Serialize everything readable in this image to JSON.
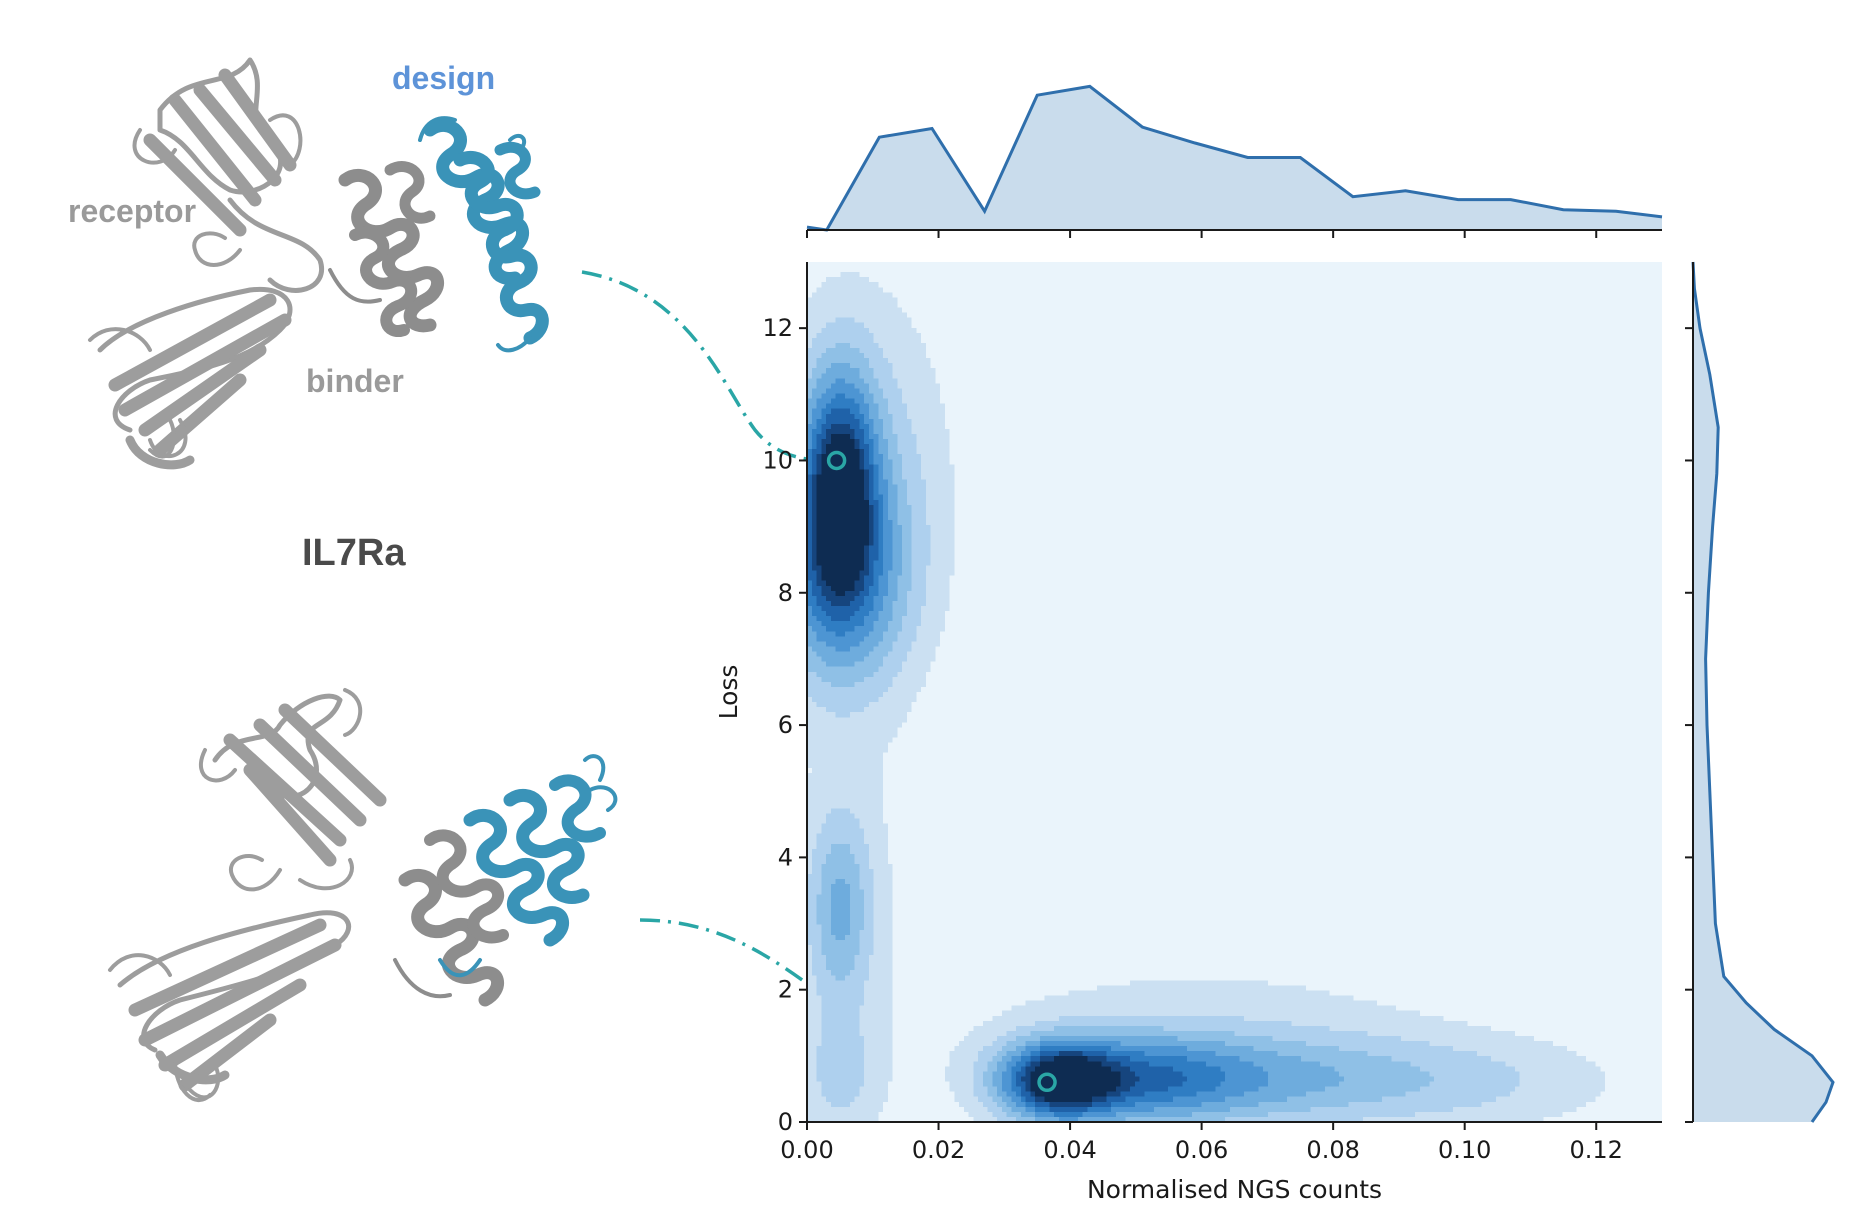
{
  "chart_data": {
    "type": "joint-kde",
    "xlabel": "Normalised NGS counts",
    "ylabel": "Loss",
    "xlim": [
      0.0,
      0.13
    ],
    "ylim": [
      0,
      13
    ],
    "x_ticks": [
      0.0,
      0.02,
      0.04,
      0.06,
      0.08,
      0.1,
      0.12
    ],
    "x_tick_labels": [
      "0.00",
      "0.02",
      "0.04",
      "0.06",
      "0.08",
      "0.10",
      "0.12"
    ],
    "y_ticks": [
      0,
      2,
      4,
      6,
      8,
      10,
      12
    ],
    "y_tick_labels": [
      "0",
      "2",
      "4",
      "6",
      "8",
      "10",
      "12"
    ],
    "kde_levels": 9,
    "density_clusters": [
      {
        "name": "high-loss cluster",
        "x_center": 0.005,
        "y_center": 9.5,
        "x_spread": 0.02,
        "y_range": [
          6.5,
          12.2
        ]
      },
      {
        "name": "low-loss cluster",
        "x_center": 0.038,
        "y_center": 0.6,
        "x_range": [
          0.026,
          0.122
        ],
        "y_range": [
          0,
          2.2
        ]
      },
      {
        "name": "low-count tail",
        "x_center": 0.005,
        "y_center": 3,
        "y_range": [
          0,
          6.3
        ]
      }
    ],
    "highlighted_points": [
      {
        "name": "IL7Ra design (high loss)",
        "x": 0.0045,
        "y": 10.0
      },
      {
        "name": "IL7Ra design (low loss)",
        "x": 0.0365,
        "y": 0.6
      }
    ],
    "x_marginal": {
      "x": [
        0.0,
        0.003,
        0.011,
        0.019,
        0.027,
        0.035,
        0.043,
        0.051,
        0.059,
        0.067,
        0.075,
        0.083,
        0.091,
        0.099,
        0.107,
        0.115,
        0.123,
        0.13
      ],
      "density": [
        0.02,
        0.0,
        0.64,
        0.7,
        0.13,
        0.93,
        0.99,
        0.71,
        0.6,
        0.5,
        0.5,
        0.23,
        0.27,
        0.21,
        0.21,
        0.14,
        0.13,
        0.09
      ]
    },
    "y_marginal": {
      "y": [
        0,
        0.3,
        0.6,
        1.0,
        1.4,
        1.8,
        2.2,
        3,
        4,
        5,
        6,
        7,
        8,
        9,
        9.8,
        10.5,
        11.3,
        12,
        12.6,
        13
      ],
      "density": [
        0.85,
        0.95,
        1.0,
        0.85,
        0.58,
        0.38,
        0.22,
        0.16,
        0.14,
        0.12,
        0.1,
        0.09,
        0.11,
        0.14,
        0.17,
        0.18,
        0.12,
        0.05,
        0.01,
        0.0
      ]
    }
  },
  "structures": {
    "title": "IL7Ra",
    "labels": {
      "design": "design",
      "receptor": "receptor",
      "binder": "binder"
    }
  },
  "colors": {
    "kde_levels": [
      "#eaf4fb",
      "#cbe0f2",
      "#aed0ee",
      "#8fc0e6",
      "#6eacdd",
      "#4d95d3",
      "#2f7dc3",
      "#1f62a9",
      "#16457e",
      "#0e2c52"
    ],
    "marginal_line": "#2f6fac",
    "marginal_fill": "#c9dcec",
    "connector": "#2aa6a6",
    "design": "#3a93b8",
    "protein": "#9d9d9d",
    "design_label": "#5d93d8",
    "gray_label": "#9a9a9a",
    "title_label": "#4a4a4a"
  }
}
